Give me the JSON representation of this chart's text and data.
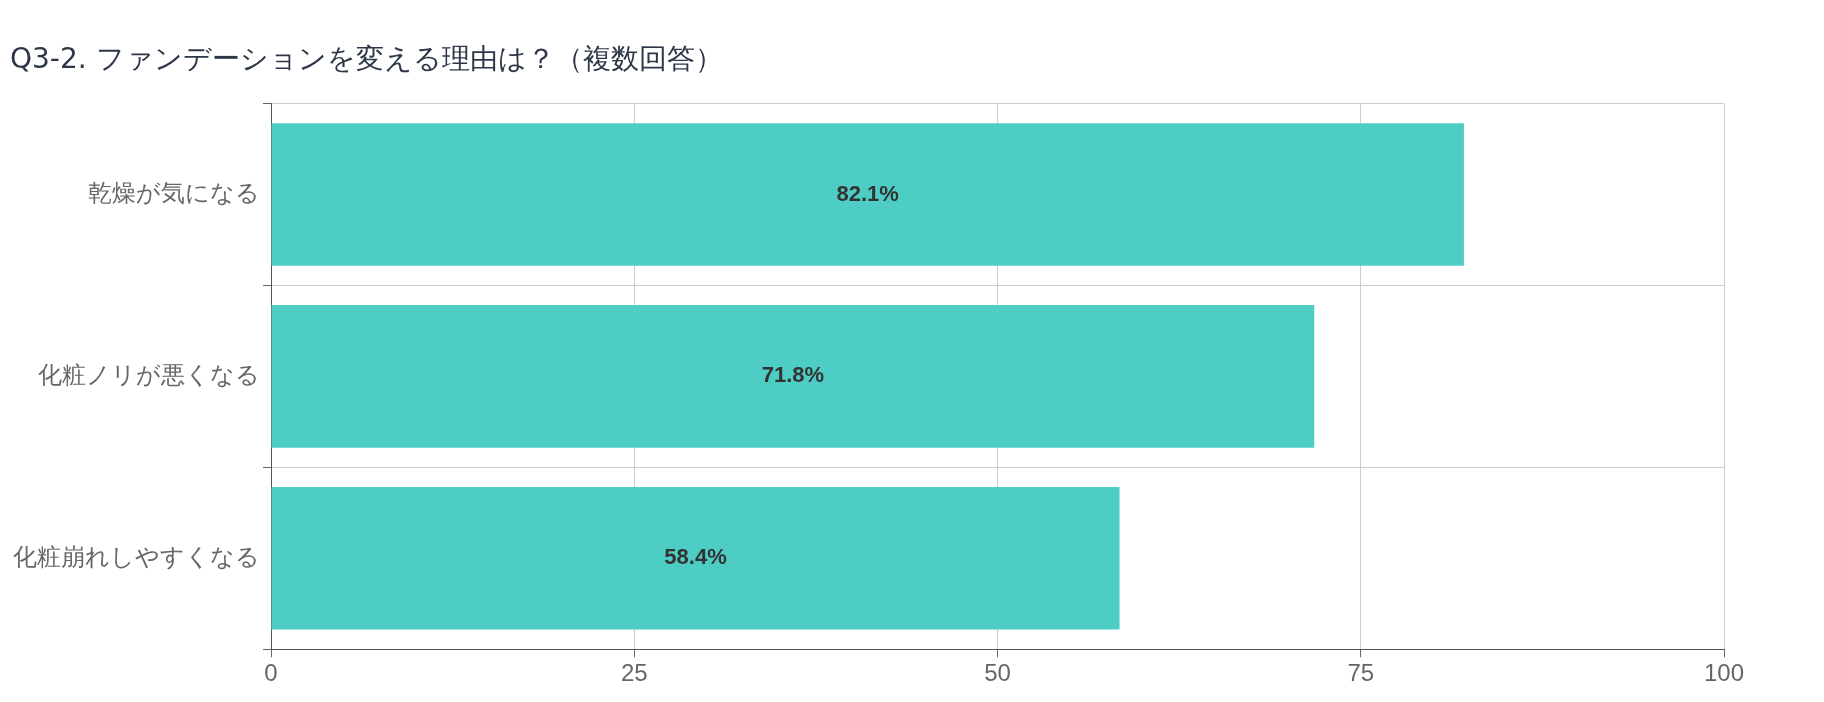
{
  "chart_data": {
    "type": "bar",
    "orientation": "horizontal",
    "title": "Q3-2. ファンデーションを変える理由は？（複数回答）",
    "categories": [
      "乾燥が気になる",
      "化粧ノリが悪くなる",
      "化粧崩れしやすくなる"
    ],
    "values": [
      82.1,
      71.8,
      58.4
    ],
    "value_labels": [
      "82.1%",
      "71.8%",
      "58.4%"
    ],
    "color": "#4ecdc4",
    "xlim": [
      0,
      100
    ],
    "xticks": [
      0,
      25,
      50,
      75,
      100
    ],
    "grid": true,
    "legend": false
  }
}
